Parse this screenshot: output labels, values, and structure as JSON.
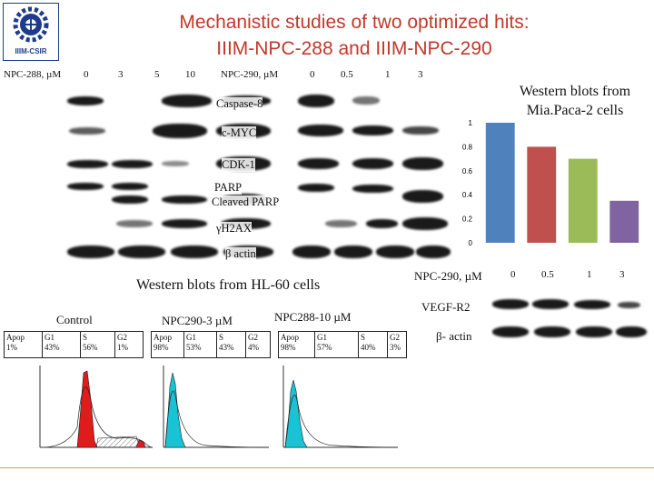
{
  "title": {
    "line1": "Mechanistic studies of two optimized hits:",
    "line2": "IIIM-NPC-288 and IIIM-NPC-290"
  },
  "logo": {
    "text": "IIIM-CSIR"
  },
  "blot_header": {
    "npc288_label": "NPC-288, µM",
    "npc288_doses": [
      "0",
      "3",
      "5",
      "10"
    ],
    "npc290_label": "NPC-290, µM",
    "npc290_doses": [
      "0",
      "0.5",
      "1",
      "3"
    ]
  },
  "blot_labels": {
    "caspase8": "Caspase-8",
    "cmyc": "c-MYC",
    "cdk1": "CDK-1",
    "parp": "PARP",
    "cleaved_parp": "Cleaved PARP",
    "h2ax": "γH2AX",
    "actin": "β actin"
  },
  "hl60_title": "Western blots from HL-60 cells",
  "facs": {
    "panels": [
      {
        "title": "Control",
        "cols": [
          {
            "key": "Apop",
            "val": "1%"
          },
          {
            "key": "G1",
            "val": "43%"
          },
          {
            "key": "S",
            "val": "56%"
          },
          {
            "key": "G2",
            "val": "1%"
          }
        ]
      },
      {
        "title": "NPC290-3 µM",
        "cols": [
          {
            "key": "Apop",
            "val": "98%"
          },
          {
            "key": "G1",
            "val": "53%"
          },
          {
            "key": "S",
            "val": "43%"
          },
          {
            "key": "G2",
            "val": "4%"
          }
        ]
      },
      {
        "title": "NPC288-10 µM",
        "cols": [
          {
            "key": "Apop",
            "val": "98%"
          },
          {
            "key": "G1",
            "val": "57%"
          },
          {
            "key": "S",
            "val": "40%"
          },
          {
            "key": "G2",
            "val": "3%"
          }
        ]
      }
    ]
  },
  "chart_data": {
    "type": "bar",
    "title": "Western blots from Mia.Paca-2 cells",
    "xlabel": "NPC-290, µM",
    "categories": [
      "0",
      "0.5",
      "1",
      "3"
    ],
    "values": [
      1.0,
      0.8,
      0.7,
      0.35
    ],
    "ylim": [
      0,
      1
    ],
    "yticks": [
      "0",
      "0.2",
      "0.4",
      "0.6",
      "0.8",
      "1"
    ],
    "colors": [
      "#4f81bd",
      "#c0504d",
      "#9bbb59",
      "#8064a2"
    ]
  },
  "mia_blots": {
    "vegfr2": "VEGF-R2",
    "actin": "β- actin"
  }
}
